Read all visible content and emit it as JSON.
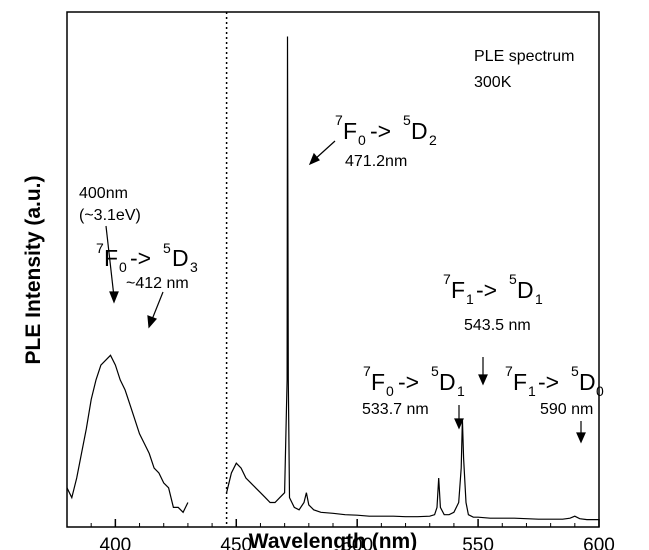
{
  "chart_data": {
    "type": "line",
    "title": "",
    "xlabel": "Wavelength (nm)",
    "ylabel": "PLE Intensity (a.u.)",
    "xlim": [
      380,
      600
    ],
    "ylim": [
      0,
      1.05
    ],
    "x_ticks": [
      400,
      450,
      500,
      550,
      600
    ],
    "x_tick_labels": [
      "400",
      "450",
      "500",
      "550",
      "600"
    ],
    "y_tick_labels": [],
    "grid": false,
    "legend": "none",
    "line_color": "#000000",
    "divider_x": 446,
    "inset_text": [
      "PLE spectrum",
      "300K"
    ],
    "series": [
      {
        "segment": "left",
        "x": [
          380,
          382,
          384,
          386,
          388,
          390,
          392,
          394,
          396,
          398,
          400,
          402,
          404,
          406,
          408,
          410,
          412,
          414,
          416,
          418,
          420,
          422,
          424,
          426,
          428,
          430
        ],
        "y": [
          0.08,
          0.06,
          0.1,
          0.15,
          0.2,
          0.26,
          0.3,
          0.33,
          0.34,
          0.35,
          0.33,
          0.3,
          0.28,
          0.25,
          0.22,
          0.19,
          0.17,
          0.15,
          0.12,
          0.11,
          0.09,
          0.08,
          0.04,
          0.04,
          0.03,
          0.05
        ]
      },
      {
        "segment": "right",
        "x": [
          446,
          448,
          450,
          452,
          454,
          456,
          458,
          460,
          462,
          464,
          466,
          468,
          470,
          471,
          471.2,
          471.5,
          472,
          474,
          476,
          478,
          479,
          480,
          482,
          485,
          490,
          495,
          500,
          505,
          510,
          515,
          520,
          525,
          530,
          532,
          533,
          533.7,
          534.4,
          536,
          538,
          540,
          542,
          543,
          543.5,
          544,
          545,
          546,
          548,
          550,
          555,
          560,
          565,
          570,
          575,
          580,
          585,
          588,
          590,
          592,
          595,
          600
        ],
        "y": [
          0.07,
          0.11,
          0.13,
          0.12,
          0.1,
          0.09,
          0.08,
          0.07,
          0.06,
          0.05,
          0.05,
          0.06,
          0.07,
          0.3,
          1.0,
          0.3,
          0.06,
          0.04,
          0.035,
          0.05,
          0.07,
          0.045,
          0.035,
          0.03,
          0.028,
          0.025,
          0.024,
          0.022,
          0.022,
          0.022,
          0.021,
          0.021,
          0.022,
          0.025,
          0.04,
          0.1,
          0.04,
          0.025,
          0.025,
          0.03,
          0.05,
          0.12,
          0.22,
          0.14,
          0.05,
          0.025,
          0.02,
          0.02,
          0.018,
          0.018,
          0.018,
          0.017,
          0.016,
          0.016,
          0.016,
          0.018,
          0.022,
          0.017,
          0.015,
          0.015
        ]
      }
    ],
    "annotations": [
      {
        "id": "d3",
        "label_lines": [
          "400nm",
          "(~3.1eV)"
        ],
        "wavelength_label": "~412 nm"
      },
      {
        "id": "d2",
        "wavelength_label": "471.2nm"
      },
      {
        "id": "d1a",
        "wavelength_label": "543.5 nm"
      },
      {
        "id": "d1b",
        "wavelength_label": "533.7 nm"
      },
      {
        "id": "d0",
        "wavelength_label": "590 nm"
      }
    ],
    "transitions": {
      "d3": {
        "from_sup": "7",
        "from": "F",
        "from_sub": "0",
        "arrow": "->",
        "to_sup": "5",
        "to": "D",
        "to_sub": "3"
      },
      "d2": {
        "from_sup": "7",
        "from": "F",
        "from_sub": "0",
        "arrow": "->",
        "to_sup": "5",
        "to": "D",
        "to_sub": "2"
      },
      "d1a": {
        "from_sup": "7",
        "from": "F",
        "from_sub": "1",
        "arrow": "->",
        "to_sup": "5",
        "to": "D",
        "to_sub": "1"
      },
      "d1b": {
        "from_sup": "7",
        "from": "F",
        "from_sub": "0",
        "arrow": "->",
        "to_sup": "5",
        "to": "D",
        "to_sub": "1"
      },
      "d0": {
        "from_sup": "7",
        "from": "F",
        "from_sub": "1",
        "arrow": "->",
        "to_sup": "5",
        "to": "D",
        "to_sub": "0"
      }
    }
  }
}
